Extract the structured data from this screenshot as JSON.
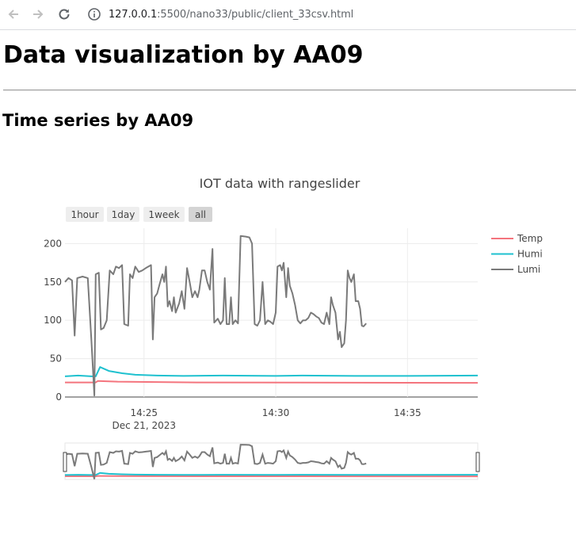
{
  "browser": {
    "url_host": "127.0.0.1",
    "url_rest": ":5500/nano33/public/client_33csv.html",
    "icons": [
      "back-arrow-icon",
      "forward-arrow-icon",
      "reload-icon",
      "site-info-icon"
    ]
  },
  "page": {
    "title": "Data visualization by AA09",
    "subtitle": "Time series by AA09"
  },
  "chart_data": {
    "type": "line",
    "title": "IOT data with rangeslider",
    "xlabel": "",
    "ylabel": "",
    "x_start": "2023-12-21 14:22:00",
    "x_end": "2023-12-21 14:37:40",
    "ylim": [
      0,
      220
    ],
    "y_ticks": [
      0,
      50,
      100,
      150,
      200
    ],
    "x_ticks": [
      {
        "time": "14:25",
        "date": "Dec 21, 2023"
      },
      {
        "time": "14:30",
        "date": ""
      },
      {
        "time": "14:35",
        "date": ""
      }
    ],
    "range_buttons": [
      {
        "label": "1hour",
        "active": false
      },
      {
        "label": "1day",
        "active": false
      },
      {
        "label": "1week",
        "active": false
      },
      {
        "label": "all",
        "active": true
      }
    ],
    "legend_position": "top-right",
    "grid": true,
    "rangeslider": true,
    "series": [
      {
        "name": "Temp",
        "color": "#f4747d",
        "points": [
          [
            "14:22:00",
            19
          ],
          [
            "14:23:10",
            19
          ],
          [
            "14:23:15",
            21
          ],
          [
            "14:24:00",
            20
          ],
          [
            "14:27:00",
            19
          ],
          [
            "14:37:40",
            18.5
          ]
        ]
      },
      {
        "name": "Humi",
        "color": "#1fc1cf",
        "points": [
          [
            "14:22:00",
            27
          ],
          [
            "14:22:30",
            28
          ],
          [
            "14:23:00",
            27
          ],
          [
            "14:23:10",
            27
          ],
          [
            "14:23:20",
            39
          ],
          [
            "14:23:40",
            34
          ],
          [
            "14:24:10",
            31
          ],
          [
            "14:24:40",
            29
          ],
          [
            "14:25:30",
            28
          ],
          [
            "14:26:30",
            27.5
          ],
          [
            "14:28:00",
            28
          ],
          [
            "14:30:00",
            27.5
          ],
          [
            "14:31:00",
            28
          ],
          [
            "14:33:00",
            27.5
          ],
          [
            "14:35:00",
            27.5
          ],
          [
            "14:37:40",
            28
          ]
        ]
      },
      {
        "name": "Lumi",
        "color": "#7a7a7a",
        "points": [
          [
            "14:22:00",
            150
          ],
          [
            "14:22:08",
            155
          ],
          [
            "14:22:16",
            152
          ],
          [
            "14:22:22",
            80
          ],
          [
            "14:22:28",
            155
          ],
          [
            "14:22:40",
            157
          ],
          [
            "14:22:52",
            155
          ],
          [
            "14:23:00",
            75
          ],
          [
            "14:23:07",
            2
          ],
          [
            "14:23:10",
            160
          ],
          [
            "14:23:17",
            162
          ],
          [
            "14:23:22",
            88
          ],
          [
            "14:23:28",
            90
          ],
          [
            "14:23:35",
            100
          ],
          [
            "14:23:42",
            165
          ],
          [
            "14:23:50",
            160
          ],
          [
            "14:23:56",
            170
          ],
          [
            "14:24:03",
            168
          ],
          [
            "14:24:10",
            172
          ],
          [
            "14:24:15",
            95
          ],
          [
            "14:24:24",
            93
          ],
          [
            "14:24:28",
            160
          ],
          [
            "14:24:34",
            155
          ],
          [
            "14:24:40",
            170
          ],
          [
            "14:24:48",
            163
          ],
          [
            "14:24:56",
            165
          ],
          [
            "14:25:04",
            168
          ],
          [
            "14:25:10",
            170
          ],
          [
            "14:25:16",
            172
          ],
          [
            "14:25:20",
            75
          ],
          [
            "14:25:24",
            130
          ],
          [
            "14:25:30",
            135
          ],
          [
            "14:25:36",
            148
          ],
          [
            "14:25:42",
            160
          ],
          [
            "14:25:46",
            150
          ],
          [
            "14:25:50",
            170
          ],
          [
            "14:25:54",
            118
          ],
          [
            "14:25:58",
            125
          ],
          [
            "14:26:04",
            112
          ],
          [
            "14:26:08",
            130
          ],
          [
            "14:26:12",
            110
          ],
          [
            "14:26:20",
            122
          ],
          [
            "14:26:26",
            138
          ],
          [
            "14:26:32",
            115
          ],
          [
            "14:26:38",
            168
          ],
          [
            "14:26:44",
            150
          ],
          [
            "14:26:50",
            130
          ],
          [
            "14:26:56",
            138
          ],
          [
            "14:27:02",
            130
          ],
          [
            "14:27:06",
            140
          ],
          [
            "14:27:12",
            165
          ],
          [
            "14:27:18",
            165
          ],
          [
            "14:27:24",
            150
          ],
          [
            "14:27:30",
            140
          ],
          [
            "14:27:36",
            193
          ],
          [
            "14:27:40",
            97
          ],
          [
            "14:27:48",
            102
          ],
          [
            "14:27:54",
            95
          ],
          [
            "14:28:00",
            100
          ],
          [
            "14:28:04",
            155
          ],
          [
            "14:28:08",
            95
          ],
          [
            "14:28:14",
            95
          ],
          [
            "14:28:18",
            130
          ],
          [
            "14:28:22",
            95
          ],
          [
            "14:28:28",
            100
          ],
          [
            "14:28:34",
            96
          ],
          [
            "14:28:40",
            210
          ],
          [
            "14:28:52",
            209
          ],
          [
            "14:29:00",
            208
          ],
          [
            "14:29:06",
            200
          ],
          [
            "14:29:12",
            95
          ],
          [
            "14:29:18",
            93
          ],
          [
            "14:29:24",
            100
          ],
          [
            "14:29:30",
            150
          ],
          [
            "14:29:36",
            95
          ],
          [
            "14:29:42",
            100
          ],
          [
            "14:29:48",
            98
          ],
          [
            "14:29:54",
            95
          ],
          [
            "14:30:00",
            110
          ],
          [
            "14:30:04",
            170
          ],
          [
            "14:30:10",
            172
          ],
          [
            "14:30:14",
            165
          ],
          [
            "14:30:18",
            175
          ],
          [
            "14:30:24",
            130
          ],
          [
            "14:30:28",
            168
          ],
          [
            "14:30:32",
            145
          ],
          [
            "14:30:38",
            135
          ],
          [
            "14:30:44",
            120
          ],
          [
            "14:30:50",
            100
          ],
          [
            "14:30:56",
            96
          ],
          [
            "14:31:02",
            100
          ],
          [
            "14:31:08",
            100
          ],
          [
            "14:31:14",
            103
          ],
          [
            "14:31:20",
            110
          ],
          [
            "14:31:26",
            108
          ],
          [
            "14:31:32",
            105
          ],
          [
            "14:31:38",
            103
          ],
          [
            "14:31:44",
            97
          ],
          [
            "14:31:50",
            95
          ],
          [
            "14:31:56",
            110
          ],
          [
            "14:32:02",
            95
          ],
          [
            "14:32:06",
            130
          ],
          [
            "14:32:10",
            120
          ],
          [
            "14:32:16",
            110
          ],
          [
            "14:32:22",
            75
          ],
          [
            "14:32:26",
            85
          ],
          [
            "14:32:30",
            65
          ],
          [
            "14:32:36",
            70
          ],
          [
            "14:32:40",
            100
          ],
          [
            "14:32:44",
            165
          ],
          [
            "14:32:48",
            155
          ],
          [
            "14:32:52",
            150
          ],
          [
            "14:32:58",
            160
          ],
          [
            "14:33:02",
            125
          ],
          [
            "14:33:08",
            125
          ],
          [
            "14:33:12",
            115
          ],
          [
            "14:33:16",
            93
          ],
          [
            "14:33:20",
            92
          ],
          [
            "14:33:26",
            96
          ]
        ]
      }
    ]
  }
}
